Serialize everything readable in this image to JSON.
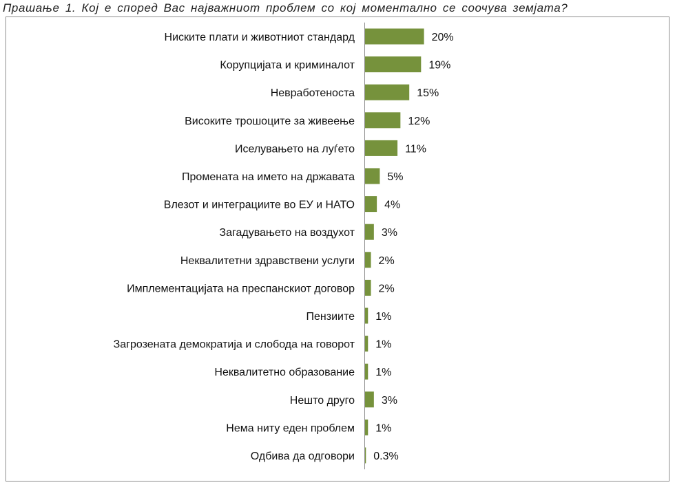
{
  "title": "Прашање 1. Кој е според Вас најважниот проблем со кој моментално се соочува земјата?",
  "colors": {
    "bar": "#76923c",
    "axis": "#8c8c8c",
    "frame": "#8c8c8c"
  },
  "chart_data": {
    "type": "bar",
    "orientation": "horizontal",
    "title": "Прашање 1. Кој е според Вас најважниот проблем со кој моментално се соочува земјата?",
    "xlabel": "",
    "ylabel": "",
    "grid": false,
    "legend": "none",
    "categories": [
      "Ниските плати и животниот стандард",
      "Корупцијата и криминалот",
      "Невработеноста",
      "Високите трошоците за живеење",
      "Иселувањето на луѓето",
      "Промената на името на државата",
      "Влезот и интеграциите во ЕУ и НАТО",
      "Загадувањето на воздухот",
      "Неквалитетни здравствени услуги",
      "Имплементацијата на преспанскиот договор",
      "Пензиите",
      "Загрозената демократија и слобода на говорот",
      "Неквалитетно образование",
      "Нешто друго",
      "Нема ниту еден проблем",
      "Одбива да одговори"
    ],
    "values": [
      20,
      19,
      15,
      12,
      11,
      5,
      4,
      3,
      2,
      2,
      1,
      1,
      1,
      3,
      1,
      0.3
    ],
    "value_labels": [
      "20%",
      "19%",
      "15%",
      "12%",
      "11%",
      "5%",
      "4%",
      "3%",
      "2%",
      "2%",
      "1%",
      "1%",
      "1%",
      "3%",
      "1%",
      "0.3%"
    ],
    "xlim": [
      0,
      50
    ]
  }
}
